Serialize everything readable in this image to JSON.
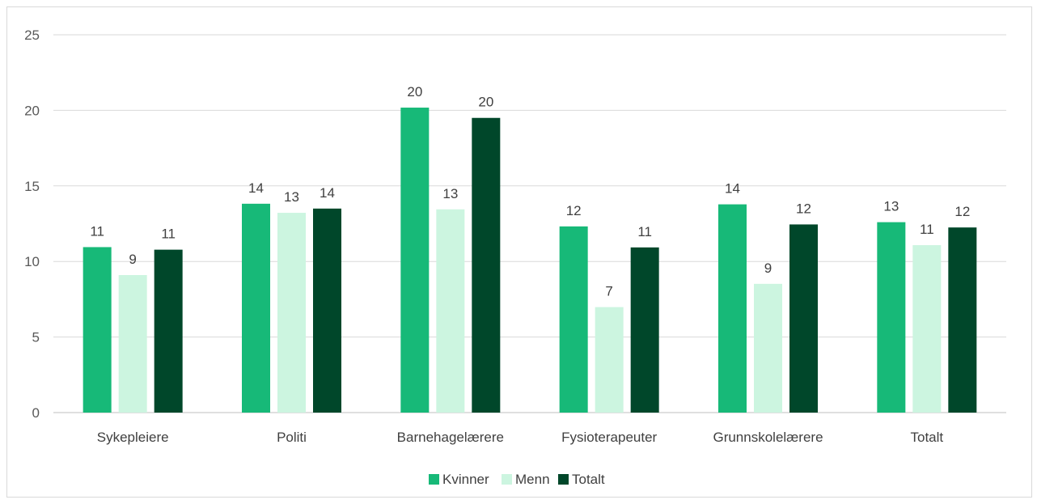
{
  "chart_data": {
    "type": "bar",
    "title": "",
    "xlabel": "",
    "ylabel": "",
    "ylim": [
      0,
      25
    ],
    "yticks": [
      0,
      5,
      10,
      15,
      20,
      25
    ],
    "grid": true,
    "legend_position": "bottom",
    "categories": [
      "Sykepleiere",
      "Politi",
      "Barnehagelærere",
      "Fysioterapeuter",
      "Grunnskolelærere",
      "Totalt"
    ],
    "series": [
      {
        "name": "Kvinner",
        "color": "#17b978",
        "values": [
          10.95,
          13.82,
          20.18,
          12.32,
          13.78,
          12.6
        ],
        "labels": [
          "11",
          "14",
          "20",
          "12",
          "14",
          "13"
        ]
      },
      {
        "name": "Menn",
        "color": "#ccf5e0",
        "values": [
          9.1,
          13.22,
          13.45,
          6.98,
          8.52,
          11.08
        ],
        "labels": [
          "9",
          "13",
          "13",
          "7",
          "9",
          "11"
        ]
      },
      {
        "name": "Totalt",
        "color": "#00472a",
        "values": [
          10.78,
          13.5,
          19.5,
          10.93,
          12.45,
          12.25
        ],
        "labels": [
          "11",
          "14",
          "20",
          "11",
          "12",
          "12"
        ]
      }
    ]
  }
}
